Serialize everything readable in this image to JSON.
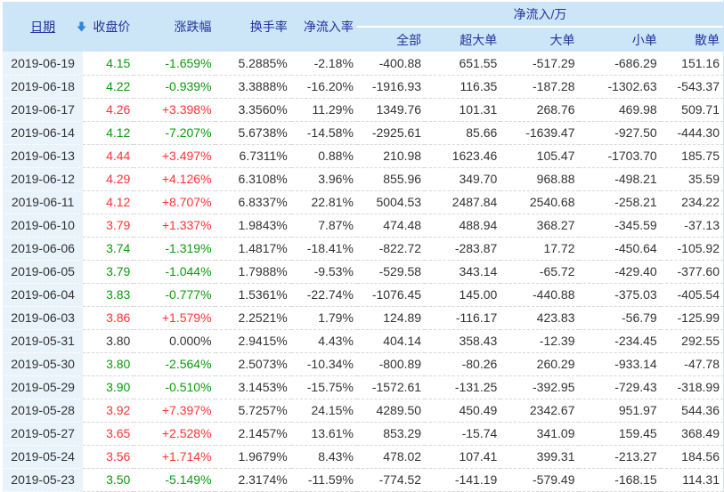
{
  "colors": {
    "up": "#ff3333",
    "down": "#0c9a0c",
    "flat": "#333333",
    "header_bg": "#cde6f7",
    "header_text": "#2433a0",
    "date_col_bg": "#e9f3fb"
  },
  "table": {
    "columns": {
      "date": "日期",
      "close": "收盘价",
      "change": "涨跌幅",
      "turnover": "换手率",
      "inflow_rate": "净流入率",
      "group": "净流入/万",
      "all": "全部",
      "super_large": "超大单",
      "large": "大单",
      "small": "小单",
      "retail": "散单"
    },
    "sort_icon": "down-arrow",
    "rows": [
      [
        "2019-06-19",
        "4.15",
        "-1.659%",
        "5.2885%",
        "-2.18%",
        "-400.88",
        "651.55",
        "-517.29",
        "-686.29",
        "151.16"
      ],
      [
        "2019-06-18",
        "4.22",
        "-0.939%",
        "3.3888%",
        "-16.20%",
        "-1916.93",
        "116.35",
        "-187.28",
        "-1302.63",
        "-543.37"
      ],
      [
        "2019-06-17",
        "4.26",
        "+3.398%",
        "3.3560%",
        "11.29%",
        "1349.76",
        "101.31",
        "268.76",
        "469.98",
        "509.71"
      ],
      [
        "2019-06-14",
        "4.12",
        "-7.207%",
        "5.6738%",
        "-14.58%",
        "-2925.61",
        "85.66",
        "-1639.47",
        "-927.50",
        "-444.30"
      ],
      [
        "2019-06-13",
        "4.44",
        "+3.497%",
        "6.7311%",
        "0.88%",
        "210.98",
        "1623.46",
        "105.47",
        "-1703.70",
        "185.75"
      ],
      [
        "2019-06-12",
        "4.29",
        "+4.126%",
        "6.3108%",
        "3.96%",
        "855.96",
        "349.70",
        "968.88",
        "-498.21",
        "35.59"
      ],
      [
        "2019-06-11",
        "4.12",
        "+8.707%",
        "6.8337%",
        "22.81%",
        "5004.53",
        "2487.84",
        "2540.68",
        "-258.21",
        "234.22"
      ],
      [
        "2019-06-10",
        "3.79",
        "+1.337%",
        "1.9843%",
        "7.87%",
        "474.48",
        "488.94",
        "368.27",
        "-345.59",
        "-37.13"
      ],
      [
        "2019-06-06",
        "3.74",
        "-1.319%",
        "1.4817%",
        "-18.41%",
        "-822.72",
        "-283.87",
        "17.72",
        "-450.64",
        "-105.92"
      ],
      [
        "2019-06-05",
        "3.79",
        "-1.044%",
        "1.7988%",
        "-9.53%",
        "-529.58",
        "343.14",
        "-65.72",
        "-429.40",
        "-377.60"
      ],
      [
        "2019-06-04",
        "3.83",
        "-0.777%",
        "1.5361%",
        "-22.74%",
        "-1076.45",
        "145.00",
        "-440.88",
        "-375.03",
        "-405.54"
      ],
      [
        "2019-06-03",
        "3.86",
        "+1.579%",
        "2.2521%",
        "1.79%",
        "124.89",
        "-116.17",
        "423.83",
        "-56.79",
        "-125.99"
      ],
      [
        "2019-05-31",
        "3.80",
        "0.000%",
        "2.9415%",
        "4.43%",
        "404.14",
        "358.43",
        "-12.39",
        "-234.45",
        "292.55"
      ],
      [
        "2019-05-30",
        "3.80",
        "-2.564%",
        "2.5073%",
        "-10.34%",
        "-800.89",
        "-80.26",
        "260.29",
        "-933.14",
        "-47.78"
      ],
      [
        "2019-05-29",
        "3.90",
        "-0.510%",
        "3.1453%",
        "-15.75%",
        "-1572.61",
        "-131.25",
        "-392.95",
        "-729.43",
        "-318.99"
      ],
      [
        "2019-05-28",
        "3.92",
        "+7.397%",
        "5.7257%",
        "24.15%",
        "4289.50",
        "450.49",
        "2342.67",
        "951.97",
        "544.36"
      ],
      [
        "2019-05-27",
        "3.65",
        "+2.528%",
        "2.1457%",
        "13.61%",
        "853.29",
        "-15.74",
        "341.09",
        "159.45",
        "368.49"
      ],
      [
        "2019-05-24",
        "3.56",
        "+1.714%",
        "1.9679%",
        "8.43%",
        "478.02",
        "107.41",
        "399.31",
        "-213.27",
        "184.56"
      ],
      [
        "2019-05-23",
        "3.50",
        "-5.149%",
        "2.3174%",
        "-11.59%",
        "-774.52",
        "-141.19",
        "-579.49",
        "-168.15",
        "114.31"
      ]
    ]
  }
}
